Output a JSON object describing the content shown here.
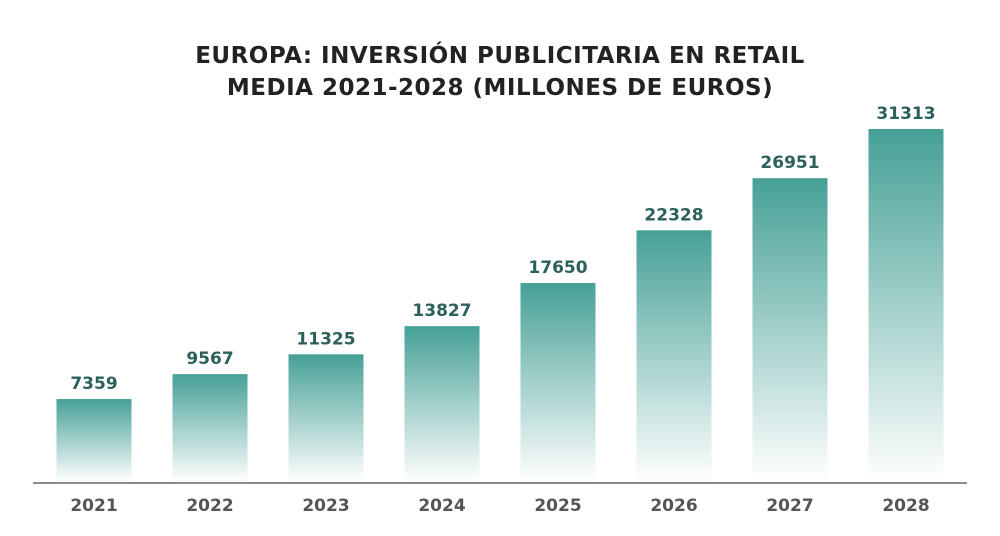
{
  "chart_data": {
    "type": "bar",
    "title_lines": [
      "EUROPA: INVERSIÓN PUBLICITARIA EN RETAIL",
      "MEDIA 2021-2028 (MILLONES DE EUROS)"
    ],
    "categories": [
      "2021",
      "2022",
      "2023",
      "2024",
      "2025",
      "2026",
      "2027",
      "2028"
    ],
    "values": [
      7359,
      9567,
      11325,
      13827,
      17650,
      22328,
      26951,
      31313
    ],
    "xlabel": "",
    "ylabel": "",
    "ylim": [
      0,
      31313
    ],
    "grid": false,
    "data_labels": true,
    "colors": {
      "bar_top": "#46a096",
      "bar_bottom": "#ffffff",
      "label": "#2c615b",
      "axis": "#666666"
    }
  }
}
